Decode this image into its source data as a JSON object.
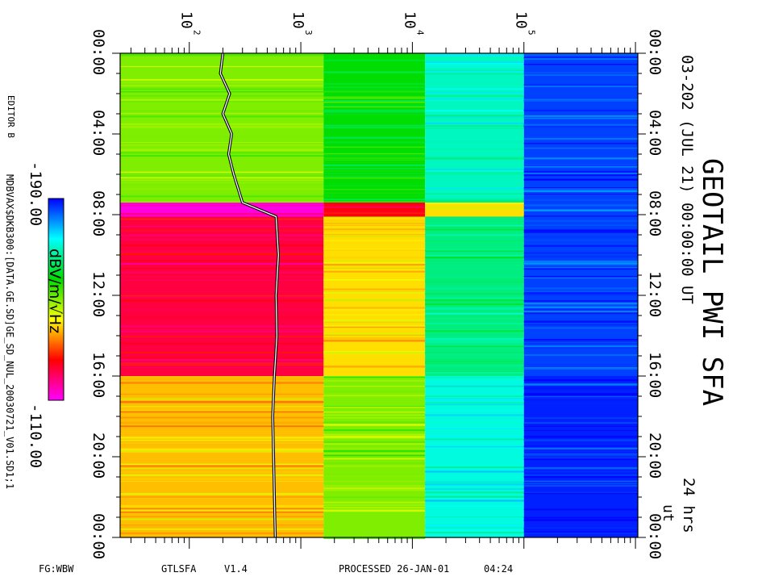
{
  "chart_data": {
    "type": "heatmap",
    "title": "GEOTAIL PWI SFA",
    "subtitle": "03-202 (JUL 21) 00:00:00 UT",
    "duration_label": "24 hrs",
    "x_axis": {
      "quantity": "frequency",
      "scale": "log",
      "tick_labels": [
        "10",
        "10",
        "10",
        "10"
      ],
      "tick_exponents": [
        "2",
        "3",
        "4",
        "5"
      ],
      "tick_values": [
        100,
        1000,
        10000,
        100000
      ],
      "range": [
        24,
        1050000
      ]
    },
    "y_axis": {
      "quantity": "time",
      "unit": "UT hours",
      "tick_labels": [
        "00:00",
        "04:00",
        "08:00",
        "12:00",
        "16:00",
        "20:00",
        "00:00"
      ],
      "tick_values": [
        0,
        4,
        8,
        12,
        16,
        20,
        24
      ],
      "ut_label": "ut",
      "range": [
        0,
        24
      ]
    },
    "colorbar": {
      "label": "dBV/m/√Hz",
      "max_label": "-110.00",
      "min_label": "-190.00",
      "max": -110,
      "min": -190,
      "colors": [
        "#ff00ff",
        "#ff0000",
        "#ffff00",
        "#00dd00",
        "#00ffff",
        "#0000ff"
      ]
    },
    "band_edges_hz": [
      24,
      1600,
      13000,
      100000,
      1050000
    ],
    "band_levels_db": [
      {
        "t0": 0.0,
        "t1": 7.4,
        "levels": [
          -150,
          -158,
          -170,
          -186
        ]
      },
      {
        "t0": 7.4,
        "t1": 8.1,
        "levels": [
          -112,
          -125,
          -140,
          -186
        ]
      },
      {
        "t0": 8.1,
        "t1": 16.0,
        "levels": [
          -122,
          -140,
          -166,
          -186
        ]
      },
      {
        "t0": 16.0,
        "t1": 24.0,
        "levels": [
          -138,
          -150,
          -172,
          -188
        ]
      }
    ],
    "overlay_line": {
      "name": "",
      "points": [
        [
          0,
          200
        ],
        [
          1,
          190
        ],
        [
          2,
          230
        ],
        [
          3,
          200
        ],
        [
          4,
          240
        ],
        [
          5,
          225
        ],
        [
          6,
          250
        ],
        [
          7.4,
          300
        ],
        [
          8.1,
          600
        ],
        [
          10,
          630
        ],
        [
          12,
          600
        ],
        [
          14,
          610
        ],
        [
          16,
          580
        ],
        [
          18,
          560
        ],
        [
          20,
          570
        ],
        [
          22,
          580
        ],
        [
          24,
          590
        ]
      ]
    }
  },
  "labels": {
    "editor": "EDITOR B",
    "file_path": "MDBVAX$DKB300:[DATA.GE.SD]GE_SD_NUL_20030721_V01.SD1;1",
    "fg_label": "FG:WBW",
    "program": "GTLSFA",
    "version": "V1.4",
    "processed": "PROCESSED 26-JAN-01",
    "processed_time": "04:24"
  }
}
